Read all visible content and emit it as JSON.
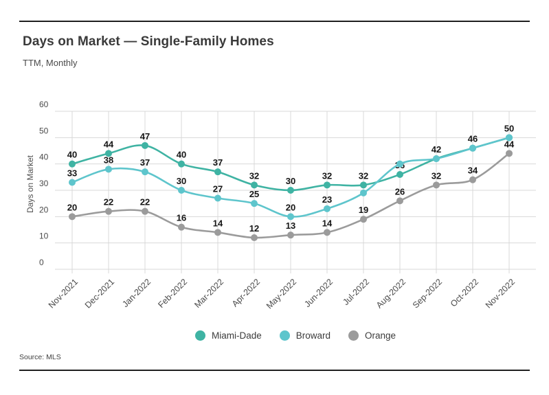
{
  "header": {
    "title": "Days on Market — Single-Family Homes",
    "subtitle": "TTM, Monthly"
  },
  "footer": {
    "source": "Source: MLS"
  },
  "chart_data": {
    "type": "line",
    "title": "Days on Market — Single-Family Homes",
    "subtitle": "TTM, Monthly",
    "xlabel": "",
    "ylabel": "Days on Market",
    "ylim": [
      0,
      60
    ],
    "yticks": [
      0,
      10,
      20,
      30,
      40,
      50,
      60
    ],
    "grid": true,
    "legend_position": "bottom-center",
    "categories": [
      "Nov-2021",
      "Dec-2021",
      "Jan-2022",
      "Feb-2022",
      "Mar-2022",
      "Apr-2022",
      "May-2022",
      "Jun-2022",
      "Jul-2022",
      "Aug-2022",
      "Sep-2022",
      "Oct-2022",
      "Nov-2022"
    ],
    "series": [
      {
        "name": "Miami-Dade",
        "color": "#3fb3a3",
        "values": [
          40,
          44,
          47,
          40,
          37,
          32,
          30,
          32,
          32,
          36,
          42,
          46,
          50
        ],
        "hidden_label_indexes": [
          10,
          11,
          12
        ]
      },
      {
        "name": "Broward",
        "color": "#5ec5cc",
        "values": [
          33,
          38,
          37,
          30,
          27,
          25,
          20,
          23,
          29,
          40,
          42,
          46,
          50
        ],
        "hidden_label_indexes": [
          8,
          9
        ]
      },
      {
        "name": "Orange",
        "color": "#9b9b9b",
        "values": [
          20,
          22,
          22,
          16,
          14,
          12,
          13,
          14,
          19,
          26,
          32,
          34,
          44
        ],
        "hidden_label_indexes": []
      }
    ]
  },
  "colors": {
    "gridline": "#d8d8d8",
    "axis_text": "#4a4a4a",
    "data_label": "#161616"
  }
}
